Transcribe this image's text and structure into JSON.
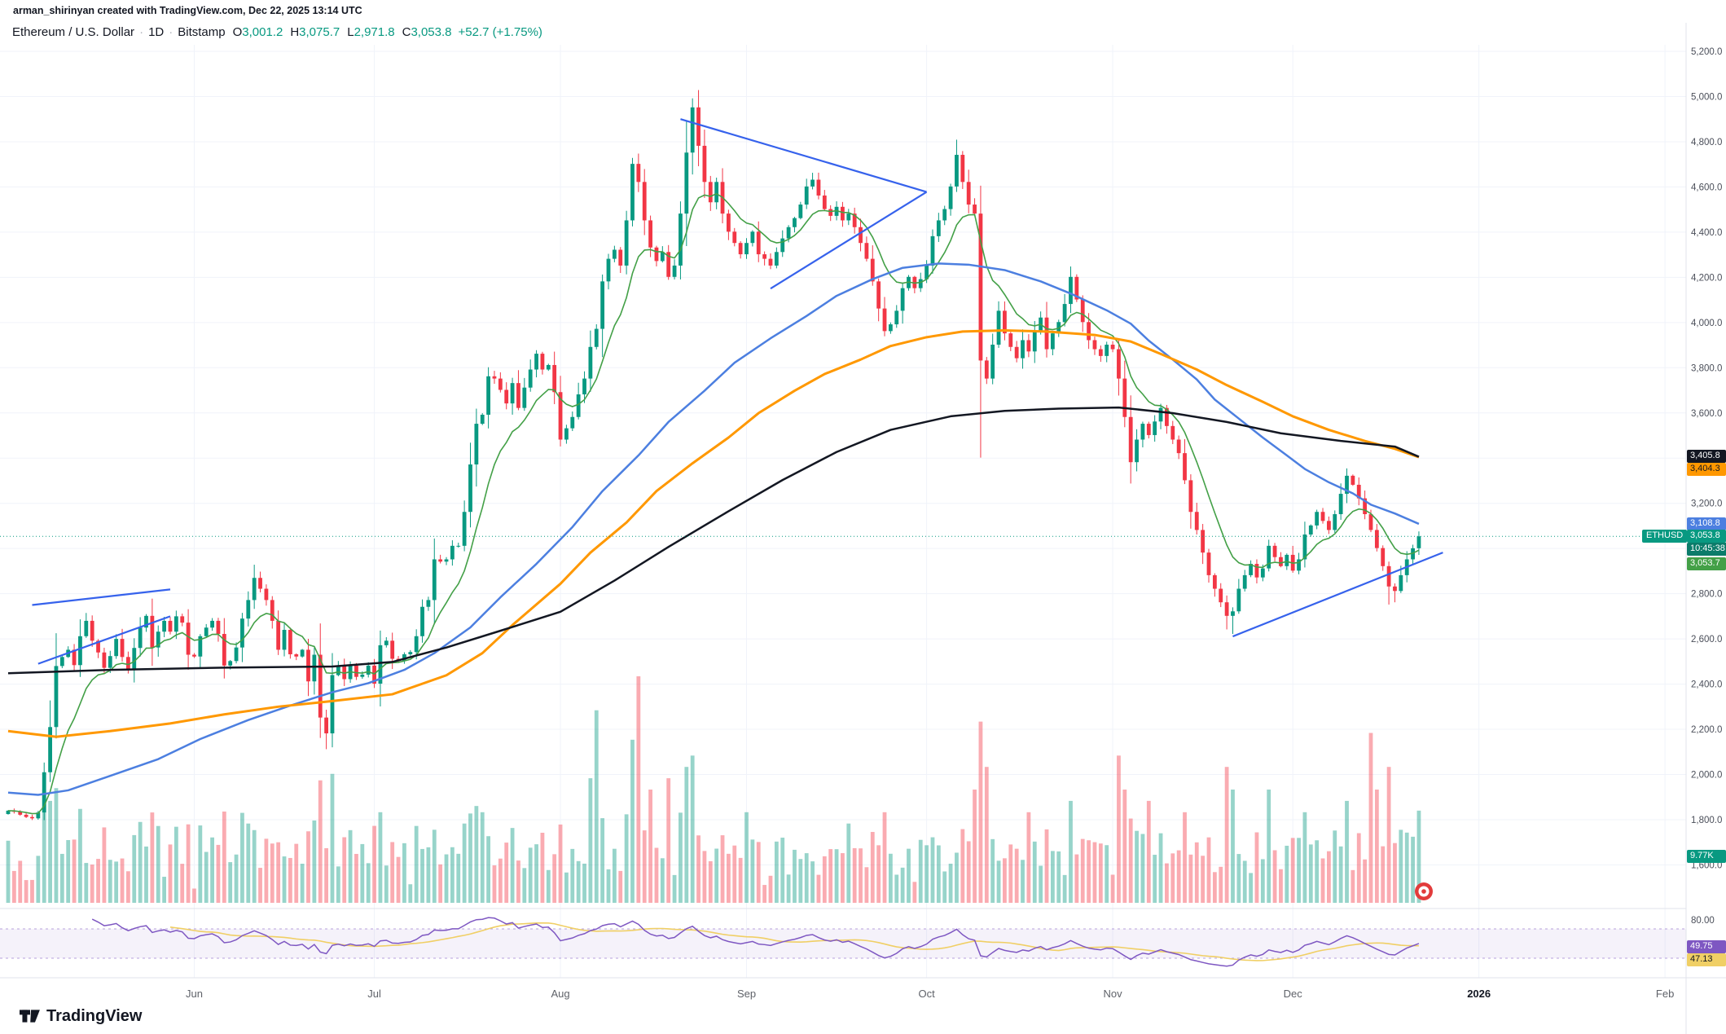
{
  "header": {
    "credit": "arman_shirinyan created with TradingView.com, Dec 22, 2025 13:14 UTC",
    "symbol_title": "Ethereum / U.S. Dollar",
    "dot": "·",
    "interval": "1D",
    "exchange": "Bitstamp",
    "ohlc": {
      "o_label": "O",
      "o_value": "3,001.2",
      "h_label": "H",
      "h_value": "3,075.7",
      "l_label": "L",
      "l_value": "2,971.8",
      "c_label": "C",
      "c_value": "3,053.8",
      "change": "+52.7 (+1.75%)"
    }
  },
  "badges": {
    "ma200": "3,405.8",
    "ma100": "3,404.3",
    "ma50": "3,108.8",
    "symbol_tag": "ETHUSD",
    "last_price": "3,053.8",
    "countdown": "10:45:38",
    "alert_level": "3,053.7",
    "volume": "9.77K",
    "rsi": "49.75",
    "rsi_ma": "47.13",
    "rsi_scale_top": "80.00"
  },
  "logo": {
    "text": "TradingView"
  },
  "chart_data": {
    "type": "candlestick",
    "symbol": "ETHUSD",
    "title": "Ethereum / U.S. Dollar",
    "exchange": "Bitstamp",
    "timeframe": "1D",
    "start_date": "2025-05-01",
    "last_candle": {
      "open": 3001.2,
      "high": 3075.7,
      "low": 2971.8,
      "close": 3053.8,
      "change": "+52.7 (+1.75%)"
    },
    "ylim": [
      1600,
      5300
    ],
    "price_ticks": [
      5200,
      5000,
      4800,
      4600,
      4400,
      4200,
      4000,
      3800,
      3600,
      3400,
      3200,
      3000,
      2800,
      2600,
      2400,
      2200,
      2000,
      1800,
      1600
    ],
    "months": [
      {
        "label": "Jun",
        "day": 31
      },
      {
        "label": "Jul",
        "day": 61
      },
      {
        "label": "Aug",
        "day": 92
      },
      {
        "label": "Sep",
        "day": 123
      },
      {
        "label": "Oct",
        "day": 153
      },
      {
        "label": "Nov",
        "day": 184
      },
      {
        "label": "Dec",
        "day": 214
      },
      {
        "label": "2026",
        "day": 245,
        "strong": true
      },
      {
        "label": "Feb",
        "day": 276
      }
    ],
    "open_first": 1825,
    "closes": [
      1840,
      1835,
      1822,
      1812,
      1806,
      1832,
      2010,
      2210,
      2480,
      2520,
      2552,
      2484,
      2612,
      2680,
      2592,
      2540,
      2472,
      2524,
      2600,
      2520,
      2462,
      2560,
      2650,
      2702,
      2562,
      2632,
      2680,
      2632,
      2700,
      2672,
      2530,
      2522,
      2612,
      2650,
      2680,
      2622,
      2482,
      2502,
      2562,
      2690,
      2772,
      2870,
      2822,
      2772,
      2680,
      2552,
      2640,
      2532,
      2522,
      2552,
      2412,
      2530,
      2252,
      2182,
      2440,
      2482,
      2422,
      2482,
      2432,
      2442,
      2482,
      2402,
      2572,
      2592,
      2512,
      2502,
      2532,
      2542,
      2612,
      2742,
      2772,
      2952,
      2942,
      2952,
      3012,
      3012,
      3162,
      3372,
      3552,
      3592,
      3762,
      3752,
      3702,
      3642,
      3732,
      3622,
      3712,
      3792,
      3862,
      3792,
      3812,
      3692,
      3482,
      3532,
      3582,
      3682,
      3752,
      3892,
      3972,
      4182,
      4282,
      4322,
      4252,
      4452,
      4702,
      4622,
      4452,
      4332,
      4272,
      4312,
      4202,
      4252,
      4482,
      4752,
      4952,
      4782,
      4622,
      4532,
      4622,
      4482,
      4402,
      4352,
      4302,
      4352,
      4402,
      4302,
      4282,
      4252,
      4312,
      4372,
      4422,
      4462,
      4522,
      4602,
      4632,
      4562,
      4502,
      4472,
      4512,
      4452,
      4482,
      4422,
      4352,
      4282,
      4182,
      4062,
      3962,
      3992,
      4052,
      4152,
      4202,
      4152,
      4192,
      4252,
      4382,
      4452,
      4502,
      4602,
      4742,
      4622,
      4522,
      4482,
      3832,
      3752,
      3902,
      4052,
      3952,
      3892,
      3842,
      3922,
      3872,
      3962,
      4022,
      3882,
      3952,
      4002,
      4082,
      4202,
      4102,
      4002,
      3922,
      3882,
      3852,
      3902,
      3882,
      3752,
      3582,
      3382,
      3482,
      3552,
      3502,
      3562,
      3622,
      3542,
      3482,
      3422,
      3302,
      3162,
      3082,
      2982,
      2882,
      2822,
      2762,
      2702,
      2722,
      2822,
      2882,
      2932,
      2872,
      2912,
      3012,
      2962,
      2922,
      2972,
      2902,
      2952,
      3062,
      3102,
      3162,
      3122,
      3082,
      3152,
      3242,
      3322,
      3282,
      3222,
      3152,
      3082,
      3002,
      2922,
      2832,
      2812,
      2882,
      2952,
      3001.2,
      3053.8
    ],
    "wick_overrides": {
      "6": {
        "low": 1798
      },
      "52": {
        "low": 2162
      },
      "53": {
        "low": 2112
      },
      "114": {
        "high": 4992
      },
      "162": {
        "low": 3402
      },
      "203": {
        "low": 2642
      },
      "204": {
        "low": 2622
      },
      "230": {
        "low": 2752
      },
      "231": {
        "low": 2762
      },
      "235": {
        "high": 3075.7,
        "low": 2971.8
      }
    },
    "moving_averages": {
      "fast_period": 10,
      "ma50_last": 3108.8,
      "ma100_last": 3404.3,
      "ma200_last": 3405.8,
      "ma50": [
        [
          0,
          1920
        ],
        [
          5,
          1910
        ],
        [
          10,
          1930
        ],
        [
          17,
          1994
        ],
        [
          25,
          2068
        ],
        [
          32,
          2157
        ],
        [
          40,
          2241
        ],
        [
          47,
          2305
        ],
        [
          54,
          2364
        ],
        [
          60,
          2404
        ],
        [
          66,
          2463
        ],
        [
          71,
          2537
        ],
        [
          77,
          2651
        ],
        [
          82,
          2784
        ],
        [
          88,
          2932
        ],
        [
          94,
          3095
        ],
        [
          99,
          3254
        ],
        [
          105,
          3412
        ],
        [
          110,
          3560
        ],
        [
          116,
          3698
        ],
        [
          121,
          3822
        ],
        [
          127,
          3930
        ],
        [
          133,
          4029
        ],
        [
          138,
          4118
        ],
        [
          144,
          4192
        ],
        [
          149,
          4242
        ],
        [
          155,
          4261
        ],
        [
          160,
          4256
        ],
        [
          166,
          4232
        ],
        [
          172,
          4182
        ],
        [
          177,
          4128
        ],
        [
          183,
          4054
        ],
        [
          187,
          3995
        ],
        [
          190,
          3920
        ],
        [
          194,
          3836
        ],
        [
          198,
          3748
        ],
        [
          201,
          3659
        ],
        [
          205,
          3575
        ],
        [
          209,
          3491
        ],
        [
          213,
          3412
        ],
        [
          216,
          3352
        ],
        [
          220,
          3293
        ],
        [
          224,
          3244
        ],
        [
          227,
          3194
        ],
        [
          231,
          3155
        ],
        [
          235,
          3109
        ]
      ],
      "ma100": [
        [
          0,
          2192
        ],
        [
          8,
          2167
        ],
        [
          17,
          2192
        ],
        [
          27,
          2226
        ],
        [
          36,
          2266
        ],
        [
          45,
          2300
        ],
        [
          54,
          2325
        ],
        [
          64,
          2355
        ],
        [
          73,
          2439
        ],
        [
          79,
          2537
        ],
        [
          84,
          2661
        ],
        [
          92,
          2844
        ],
        [
          97,
          2982
        ],
        [
          103,
          3115
        ],
        [
          108,
          3254
        ],
        [
          114,
          3377
        ],
        [
          120,
          3491
        ],
        [
          125,
          3599
        ],
        [
          131,
          3698
        ],
        [
          136,
          3772
        ],
        [
          142,
          3836
        ],
        [
          147,
          3896
        ],
        [
          153,
          3935
        ],
        [
          159,
          3960
        ],
        [
          166,
          3965
        ],
        [
          173,
          3960
        ],
        [
          181,
          3945
        ],
        [
          187,
          3916
        ],
        [
          192,
          3861
        ],
        [
          198,
          3792
        ],
        [
          203,
          3723
        ],
        [
          209,
          3649
        ],
        [
          214,
          3585
        ],
        [
          220,
          3525
        ],
        [
          226,
          3476
        ],
        [
          231,
          3441
        ],
        [
          235,
          3404
        ]
      ],
      "ma200": [
        [
          0,
          2448
        ],
        [
          17,
          2463
        ],
        [
          36,
          2473
        ],
        [
          54,
          2478
        ],
        [
          64,
          2498
        ],
        [
          73,
          2562
        ],
        [
          82,
          2636
        ],
        [
          92,
          2720
        ],
        [
          101,
          2858
        ],
        [
          110,
          3007
        ],
        [
          120,
          3165
        ],
        [
          129,
          3303
        ],
        [
          138,
          3427
        ],
        [
          147,
          3525
        ],
        [
          157,
          3585
        ],
        [
          166,
          3609
        ],
        [
          175,
          3619
        ],
        [
          185,
          3624
        ],
        [
          194,
          3599
        ],
        [
          203,
          3560
        ],
        [
          212,
          3510
        ],
        [
          222,
          3476
        ],
        [
          231,
          3451
        ],
        [
          235,
          3406
        ]
      ]
    },
    "trendlines": [
      {
        "points": [
          [
            4,
            2750
          ],
          [
            27,
            2819
          ]
        ]
      },
      {
        "points": [
          [
            5,
            2490
          ],
          [
            27,
            2700
          ]
        ]
      },
      {
        "points": [
          [
            112,
            4900
          ],
          [
            153,
            4578
          ]
        ]
      },
      {
        "points": [
          [
            127,
            4150
          ],
          [
            153,
            4578
          ]
        ]
      },
      {
        "points": [
          [
            204,
            2611
          ],
          [
            239,
            2982
          ]
        ]
      }
    ],
    "volume": {
      "last": "9.77K",
      "spikes": {
        "6": 0.5,
        "7": 0.45,
        "40": 0.35,
        "62": 0.4,
        "76": 0.35,
        "79": 0.4,
        "97": 0.55,
        "98": 0.85,
        "104": 0.72,
        "105": 1.0,
        "107": 0.5,
        "110": 0.55,
        "113": 0.6,
        "114": 0.65,
        "123": 0.4,
        "140": 0.35,
        "146": 0.4,
        "161": 0.5,
        "162": 0.8,
        "163": 0.6,
        "170": 0.4,
        "177": 0.45,
        "185": 0.65,
        "186": 0.5,
        "190": 0.45,
        "196": 0.4,
        "203": 0.6,
        "204": 0.5,
        "210": 0.5,
        "216": 0.4,
        "223": 0.45,
        "227": 0.75,
        "228": 0.5,
        "230": 0.6,
        "235": 0.407
      }
    },
    "rsi": {
      "period": 14,
      "last": 49.75,
      "ma_last": 47.13,
      "upper_band": 70,
      "lower_band": 30,
      "scale_top": 80
    },
    "price_line": 3053.8,
    "colors": {
      "up": "#089981",
      "down": "#f23645",
      "ma_fast": "#43a047",
      "ma50": "#4c7fe0",
      "ma100": "#ff9800",
      "ma200": "#131722",
      "trend": "#3662ec",
      "rsi": "#7e57c2",
      "rsi_ma": "#f0cf65",
      "grid": "#f0f3fa",
      "sep": "#e0e3eb",
      "axis_text": "#4a4e59",
      "price_line": "#089981"
    }
  }
}
